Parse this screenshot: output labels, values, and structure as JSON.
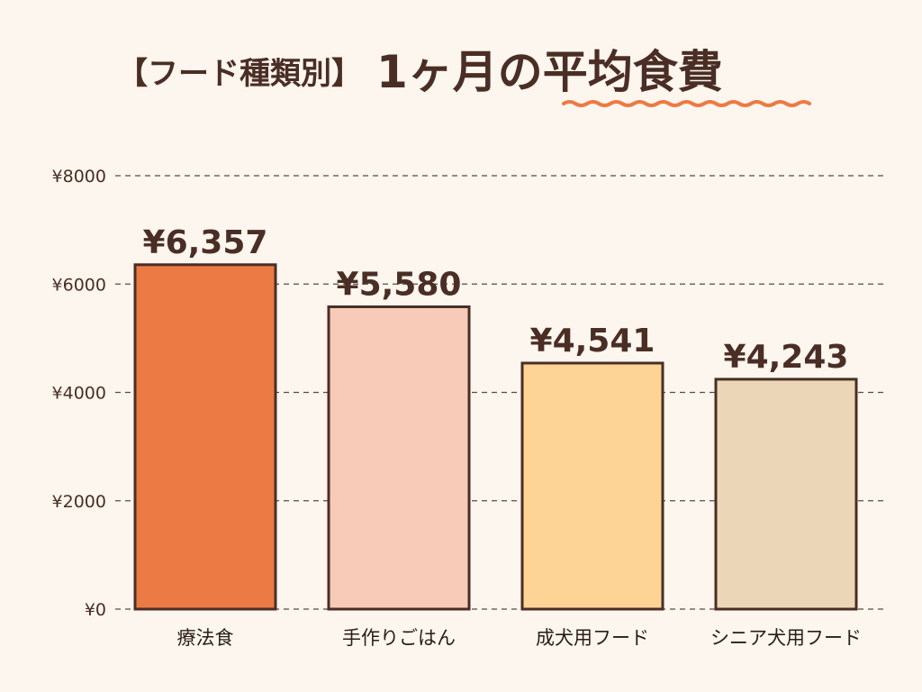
{
  "chart_data": {
    "type": "bar",
    "title_prefix": "【フード種類別】",
    "title_main": "1ヶ月の平均食費",
    "categories": [
      "療法食",
      "手作りごはん",
      "成犬用フード",
      "シニア犬用フード"
    ],
    "values": [
      6357,
      5580,
      4541,
      4243
    ],
    "value_labels": [
      "¥6,357",
      "¥5,580",
      "¥4,541",
      "¥4,243"
    ],
    "bar_colors": [
      "#ec7a45",
      "#f7cbb8",
      "#fdd495",
      "#ecd6b8"
    ],
    "ylim": [
      0,
      8000
    ],
    "yticks": [
      0,
      2000,
      4000,
      6000,
      8000
    ],
    "ytick_labels": [
      "¥0",
      "¥2000",
      "¥4000",
      "¥6000",
      "¥8000"
    ],
    "grid": true,
    "legend": "none",
    "accent_underline_color": "#ec7a45"
  }
}
